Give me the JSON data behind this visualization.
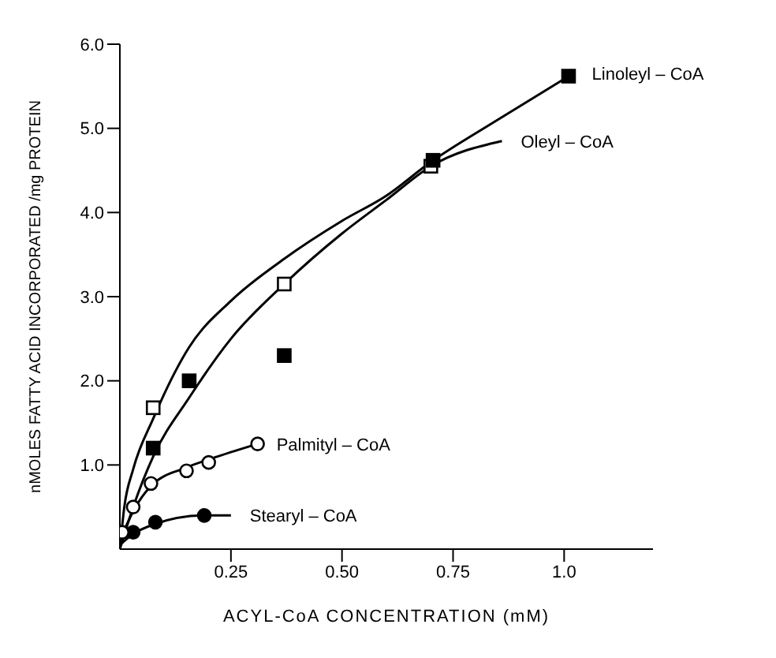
{
  "chart_data": {
    "type": "scatter",
    "xlabel": "ACYL-CoA CONCENTRATION (mM)",
    "ylabel": "nMOLES FATTY ACID INCORPORATED /mg PROTEIN",
    "xlim": [
      0,
      1.2
    ],
    "ylim": [
      0,
      6
    ],
    "xticks": [
      0.25,
      {
        "value": 0.5,
        "label": "0.50"
      },
      0.75,
      {
        "value": 1,
        "label": "1.0"
      }
    ],
    "yticks": [
      {
        "value": 1,
        "label": "1.0"
      },
      {
        "value": 2,
        "label": "2.0"
      },
      {
        "value": 3,
        "label": "3.0"
      },
      {
        "value": 4,
        "label": "4.0"
      },
      {
        "value": 5,
        "label": "5.0"
      },
      {
        "value": 6,
        "label": "6.0"
      }
    ],
    "grid": false,
    "legend": false,
    "series": [
      {
        "marker": "square",
        "color": "#000000",
        "x": [
          0.075,
          0.156,
          0.37,
          0.705,
          1.01
        ],
        "values": [
          1.2,
          2.0,
          2.3,
          4.62,
          5.62
        ]
      },
      {
        "marker": "square",
        "color": "#ffffff",
        "x": [
          0.075,
          0.37,
          0.7
        ],
        "values": [
          1.68,
          3.15,
          4.55
        ]
      },
      {
        "marker": "circle",
        "color": "#ffffff",
        "x": [
          0.005,
          0.03,
          0.07,
          0.15,
          0.2,
          0.31
        ],
        "values": [
          0.2,
          0.5,
          0.78,
          0.93,
          1.03,
          1.25
        ]
      },
      {
        "marker": "circle",
        "color": "#000000",
        "x": [
          0.03,
          0.08,
          0.19
        ],
        "values": [
          0.2,
          0.32,
          0.4
        ]
      },
      {
        "type": "line",
        "name": "Linoleyl – CoA",
        "marker": "none",
        "color": "#000000",
        "x": [
          0,
          0.01,
          0.03,
          0.075,
          0.156,
          0.25,
          0.37,
          0.5,
          0.6,
          0.7,
          0.85,
          1.02
        ],
        "values": [
          0,
          0.5,
          0.95,
          1.55,
          2.4,
          2.95,
          3.45,
          3.9,
          4.2,
          4.6,
          5.1,
          5.65
        ]
      },
      {
        "type": "line",
        "name": "Oleyl – CoA",
        "marker": "none",
        "color": "#000000",
        "x": [
          0,
          0.03,
          0.075,
          0.156,
          0.25,
          0.37,
          0.5,
          0.6,
          0.7,
          0.86
        ],
        "values": [
          0,
          0.5,
          1.1,
          1.8,
          2.5,
          3.15,
          3.75,
          4.15,
          4.55,
          4.85
        ]
      },
      {
        "type": "line",
        "name": "Palmityl – CoA",
        "marker": "none",
        "color": "#000000",
        "x": [
          0,
          0.03,
          0.07,
          0.15,
          0.22,
          0.31
        ],
        "values": [
          0.1,
          0.45,
          0.75,
          0.97,
          1.1,
          1.25
        ]
      },
      {
        "type": "line",
        "name": "Stearyl – CoA",
        "marker": "none",
        "color": "#000000",
        "x": [
          0,
          0.03,
          0.08,
          0.19,
          0.25
        ],
        "values": [
          0.05,
          0.18,
          0.3,
          0.4,
          0.4
        ]
      }
    ]
  }
}
